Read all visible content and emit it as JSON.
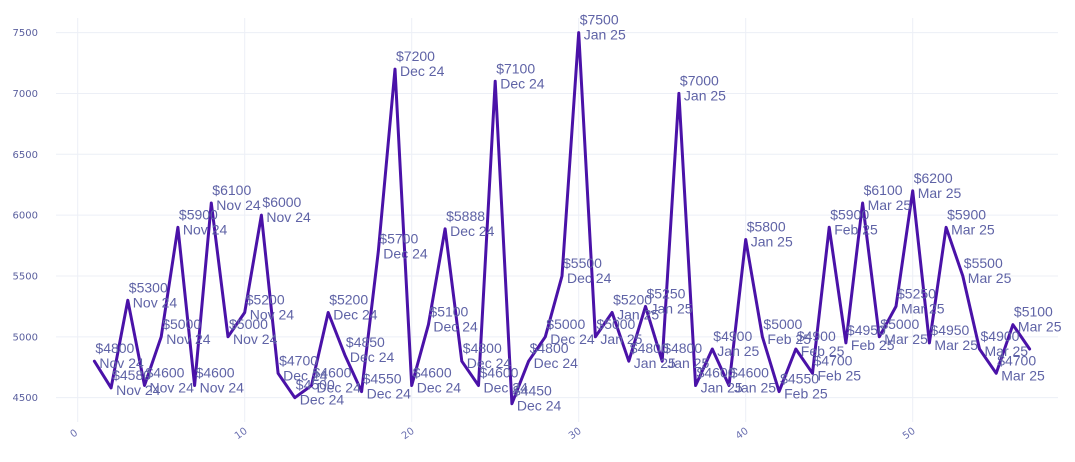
{
  "chart_data": {
    "type": "line",
    "title": "",
    "xlabel": "",
    "ylabel": "",
    "xlim": [
      -1.3,
      58.7
    ],
    "ylim": [
      4300,
      7620
    ],
    "x_ticks": [
      0,
      10,
      20,
      30,
      40,
      50
    ],
    "y_ticks": [
      4500,
      5000,
      5500,
      6000,
      6500,
      7000,
      7500
    ],
    "grid": true,
    "colors": {
      "line": "#4a12a8",
      "label": "#5f63a6",
      "grid": "#eceff6",
      "tick": "#5a5f9e"
    },
    "x": [
      1,
      2,
      3,
      4,
      5,
      6,
      7,
      8,
      9,
      10,
      11,
      12,
      13,
      14,
      15,
      16,
      17,
      18,
      19,
      20,
      21,
      22,
      23,
      24,
      25,
      26,
      27,
      28,
      29,
      30,
      31,
      32,
      33,
      34,
      35,
      36,
      37,
      38,
      39,
      40,
      41,
      42,
      43,
      44,
      45,
      46,
      47,
      48,
      49,
      50,
      51,
      52,
      53,
      54,
      55,
      56,
      57
    ],
    "y": [
      4800,
      4580,
      5300,
      4600,
      5000,
      5900,
      4600,
      6100,
      5000,
      5200,
      6000,
      4700,
      4500,
      4600,
      5200,
      4850,
      4550,
      5700,
      7200,
      4600,
      5100,
      5888,
      4800,
      4600,
      7100,
      4450,
      4800,
      5000,
      5500,
      7500,
      5000,
      5200,
      4800,
      5250,
      4800,
      7000,
      4600,
      4900,
      4600,
      5800,
      5000,
      4550,
      4900,
      4700,
      5900,
      4950,
      6100,
      5000,
      5250,
      6200,
      4950,
      5900,
      5500,
      4900,
      4700,
      5100,
      4900
    ],
    "labels": [
      [
        "$4800",
        "Nov 24"
      ],
      [
        "$4580",
        "Nov 24"
      ],
      [
        "$5300",
        "Nov 24"
      ],
      [
        "$4600",
        "Nov 24"
      ],
      [
        "$5000",
        "Nov 24"
      ],
      [
        "$5900",
        "Nov 24"
      ],
      [
        "$4600",
        "Nov 24"
      ],
      [
        "$6100",
        "Nov 24"
      ],
      [
        "$5000",
        "Nov 24"
      ],
      [
        "$5200",
        "Nov 24"
      ],
      [
        "$6000",
        "Nov 24"
      ],
      [
        "$4700",
        "Dec 24"
      ],
      [
        "$4500",
        "Dec 24"
      ],
      [
        "$4600",
        "Dec 24"
      ],
      [
        "$5200",
        "Dec 24"
      ],
      [
        "$4850",
        "Dec 24"
      ],
      [
        "$4550",
        "Dec 24"
      ],
      [
        "$5700",
        "Dec 24"
      ],
      [
        "$7200",
        "Dec 24"
      ],
      [
        "$4600",
        "Dec 24"
      ],
      [
        "$5100",
        "Dec 24"
      ],
      [
        "$5888",
        "Dec 24"
      ],
      [
        "$4800",
        "Dec 24"
      ],
      [
        "$4600",
        "Dec 24"
      ],
      [
        "$7100",
        "Dec 24"
      ],
      [
        "$4450",
        "Dec 24"
      ],
      [
        "$4800",
        "Dec 24"
      ],
      [
        "$5000",
        "Dec 24"
      ],
      [
        "$5500",
        "Dec 24"
      ],
      [
        "$7500",
        "Jan 25"
      ],
      [
        "$5000",
        "Jan 25"
      ],
      [
        "$5200",
        "Jan 25"
      ],
      [
        "$4800",
        "Jan 25"
      ],
      [
        "$5250",
        "Jan 25"
      ],
      [
        "$4800",
        "Jan 25"
      ],
      [
        "$7000",
        "Jan 25"
      ],
      [
        "$4600",
        "Jan 25"
      ],
      [
        "$4900",
        "Jan 25"
      ],
      [
        "$4600",
        "Jan 25"
      ],
      [
        "$5800",
        "Jan 25"
      ],
      [
        "$5000",
        "Feb 25"
      ],
      [
        "$4550",
        "Feb 25"
      ],
      [
        "$4900",
        "Feb 25"
      ],
      [
        "$4700",
        "Feb 25"
      ],
      [
        "$5900",
        "Feb 25"
      ],
      [
        "$4950",
        "Feb 25"
      ],
      [
        "$6100",
        "Mar 25"
      ],
      [
        "$5000",
        "Mar 25"
      ],
      [
        "$5250",
        "Mar 25"
      ],
      [
        "$6200",
        "Mar 25"
      ],
      [
        "$4950",
        "Mar 25"
      ],
      [
        "$5900",
        "Mar 25"
      ],
      [
        "$5500",
        "Mar 25"
      ],
      [
        "$4900",
        "Mar 25"
      ],
      [
        "$4700",
        "Mar 25"
      ],
      [
        "$5100",
        "Mar 25"
      ],
      [
        "",
        ""
      ]
    ]
  }
}
